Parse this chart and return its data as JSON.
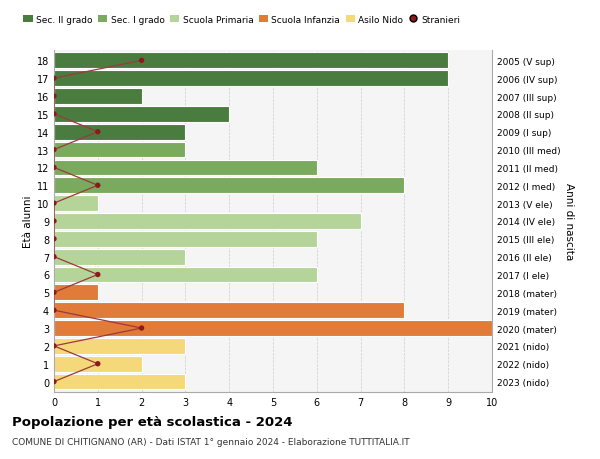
{
  "ages": [
    18,
    17,
    16,
    15,
    14,
    13,
    12,
    11,
    10,
    9,
    8,
    7,
    6,
    5,
    4,
    3,
    2,
    1,
    0
  ],
  "right_labels": [
    "2005 (V sup)",
    "2006 (IV sup)",
    "2007 (III sup)",
    "2008 (II sup)",
    "2009 (I sup)",
    "2010 (III med)",
    "2011 (II med)",
    "2012 (I med)",
    "2013 (V ele)",
    "2014 (IV ele)",
    "2015 (III ele)",
    "2016 (II ele)",
    "2017 (I ele)",
    "2018 (mater)",
    "2019 (mater)",
    "2020 (mater)",
    "2021 (nido)",
    "2022 (nido)",
    "2023 (nido)"
  ],
  "bar_values": [
    9,
    9,
    2,
    4,
    3,
    3,
    6,
    8,
    1,
    7,
    6,
    3,
    6,
    1,
    8,
    10,
    3,
    2,
    3
  ],
  "bar_colors": [
    "#4a7c3f",
    "#4a7c3f",
    "#4a7c3f",
    "#4a7c3f",
    "#4a7c3f",
    "#7aaa5e",
    "#7aaa5e",
    "#7aaa5e",
    "#b5d49a",
    "#b5d49a",
    "#b5d49a",
    "#b5d49a",
    "#b5d49a",
    "#e07b39",
    "#e07b39",
    "#e07b39",
    "#f5d87a",
    "#f5d87a",
    "#f5d87a"
  ],
  "stranieri_values": [
    2,
    0,
    0,
    0,
    1,
    0,
    0,
    1,
    0,
    0,
    0,
    0,
    1,
    0,
    0,
    2,
    0,
    1,
    0
  ],
  "legend_labels": [
    "Sec. II grado",
    "Sec. I grado",
    "Scuola Primaria",
    "Scuola Infanzia",
    "Asilo Nido",
    "Stranieri"
  ],
  "legend_colors": [
    "#4a7c3f",
    "#7aaa5e",
    "#b5d49a",
    "#e07b39",
    "#f5d87a",
    "#8b1a1a"
  ],
  "title": "Popolazione per età scolastica - 2024",
  "subtitle": "COMUNE DI CHITIGNANO (AR) - Dati ISTAT 1° gennaio 2024 - Elaborazione TUTTITALIA.IT",
  "ylabel_left": "Età alunni",
  "ylabel_right": "Anni di nascita",
  "xlim": [
    0,
    10
  ],
  "xticks": [
    0,
    1,
    2,
    3,
    4,
    5,
    6,
    7,
    8,
    9,
    10
  ],
  "bg_color": "#ffffff",
  "plot_bg_color": "#f5f5f5",
  "grid_color": "#cccccc",
  "stranieri_color": "#8b1a1a",
  "stranieri_line_color": "#9b3a3a"
}
